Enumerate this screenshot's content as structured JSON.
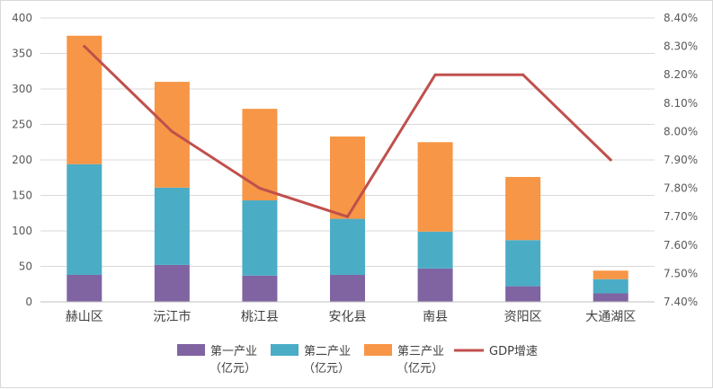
{
  "chart_data": {
    "type": "bar",
    "stacked": true,
    "categories": [
      "赫山区",
      "沅江市",
      "桃江县",
      "安化县",
      "南县",
      "资阳区",
      "大通湖区"
    ],
    "series": [
      {
        "name": "第一产业（亿元）",
        "name_lines": [
          "第一产业",
          "（亿元）"
        ],
        "color": "#8064a2",
        "values": [
          38,
          52,
          37,
          38,
          47,
          22,
          12
        ]
      },
      {
        "name": "第二产业（亿元）",
        "name_lines": [
          "第二产业",
          "（亿元）"
        ],
        "color": "#4bacc6",
        "values": [
          156,
          109,
          106,
          79,
          52,
          65,
          20
        ]
      },
      {
        "name": "第三产业（亿元）",
        "name_lines": [
          "第三产业",
          "（亿元）"
        ],
        "color": "#f79646",
        "values": [
          181,
          149,
          129,
          116,
          126,
          89,
          12
        ]
      }
    ],
    "line_series": {
      "name": "GDP增速",
      "color": "#c0504d",
      "axis": "right",
      "values": [
        8.3,
        8.0,
        7.8,
        7.7,
        8.2,
        8.2,
        7.9
      ]
    },
    "y_left": {
      "ylim": [
        0,
        400
      ],
      "ticks": [
        "0",
        "50",
        "100",
        "150",
        "200",
        "250",
        "300",
        "350",
        "400"
      ]
    },
    "y_right": {
      "ylim": [
        7.4,
        8.4
      ],
      "ticks": [
        "7.40%",
        "7.50%",
        "7.60%",
        "7.70%",
        "7.80%",
        "7.90%",
        "8.00%",
        "8.10%",
        "8.20%",
        "8.30%",
        "8.40%"
      ]
    },
    "grid": true,
    "legend_position": "bottom"
  }
}
